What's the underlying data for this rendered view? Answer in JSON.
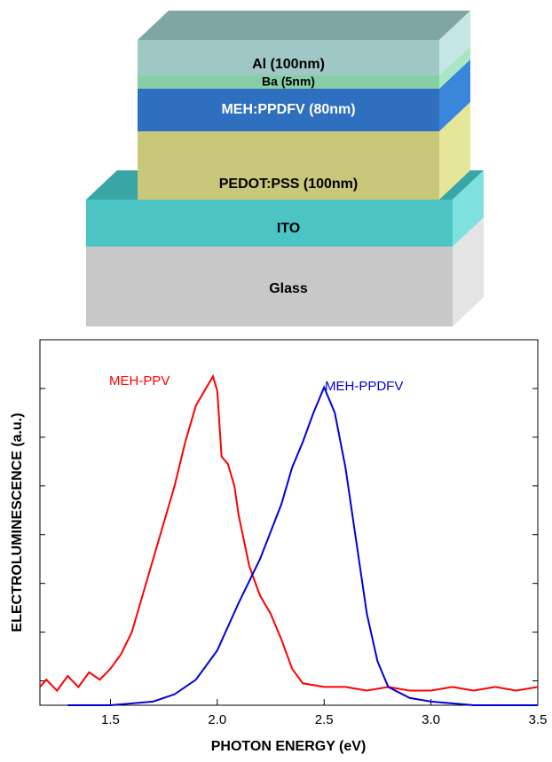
{
  "diagram": {
    "layers": [
      "Al (100nm)",
      "Ba (5nm)",
      "MEH:PPDFV (80nm)",
      "PEDOT:PSS (100nm)",
      "ITO",
      "Glass"
    ]
  },
  "chart_data": {
    "type": "line",
    "x_label": "PHOTON ENERGY (eV)",
    "y_label": "ELECTROLUMINESCENCE (a.u.)",
    "xlim": [
      1.17,
      3.5
    ],
    "ylim": [
      0,
      1
    ],
    "xticks": [
      1.5,
      {
        "value": 2,
        "label": "2.0"
      },
      2.5,
      {
        "value": 3,
        "label": "3.0"
      },
      3.5
    ],
    "series": [
      {
        "name": "MEH-PPV",
        "color": "#ff0000",
        "x": [
          1.17,
          1.2,
          1.25,
          1.3,
          1.35,
          1.4,
          1.45,
          1.5,
          1.55,
          1.6,
          1.65,
          1.7,
          1.75,
          1.8,
          1.85,
          1.9,
          1.95,
          1.98,
          2.0,
          2.02,
          2.05,
          2.08,
          2.1,
          2.15,
          2.2,
          2.25,
          2.3,
          2.35,
          2.4,
          2.5,
          2.6,
          2.7,
          2.8,
          2.9,
          3.0,
          3.1,
          3.2,
          3.3,
          3.4,
          3.5
        ],
        "values": [
          0.05,
          0.07,
          0.04,
          0.08,
          0.05,
          0.09,
          0.07,
          0.1,
          0.14,
          0.2,
          0.3,
          0.4,
          0.5,
          0.6,
          0.72,
          0.82,
          0.87,
          0.9,
          0.86,
          0.68,
          0.66,
          0.6,
          0.52,
          0.38,
          0.3,
          0.25,
          0.18,
          0.1,
          0.06,
          0.05,
          0.05,
          0.04,
          0.05,
          0.04,
          0.04,
          0.05,
          0.04,
          0.05,
          0.04,
          0.05
        ]
      },
      {
        "name": "MEH-PPDFV",
        "color": "#0000dd",
        "x": [
          1.3,
          1.4,
          1.5,
          1.6,
          1.7,
          1.8,
          1.9,
          2.0,
          2.1,
          2.2,
          2.3,
          2.35,
          2.4,
          2.45,
          2.5,
          2.55,
          2.6,
          2.65,
          2.7,
          2.75,
          2.8,
          2.9,
          3.0,
          3.2,
          3.5
        ],
        "values": [
          0,
          0,
          0,
          0.005,
          0.01,
          0.03,
          0.07,
          0.15,
          0.28,
          0.4,
          0.55,
          0.65,
          0.72,
          0.8,
          0.87,
          0.8,
          0.65,
          0.45,
          0.25,
          0.12,
          0.05,
          0.02,
          0.01,
          0,
          0
        ]
      }
    ]
  }
}
